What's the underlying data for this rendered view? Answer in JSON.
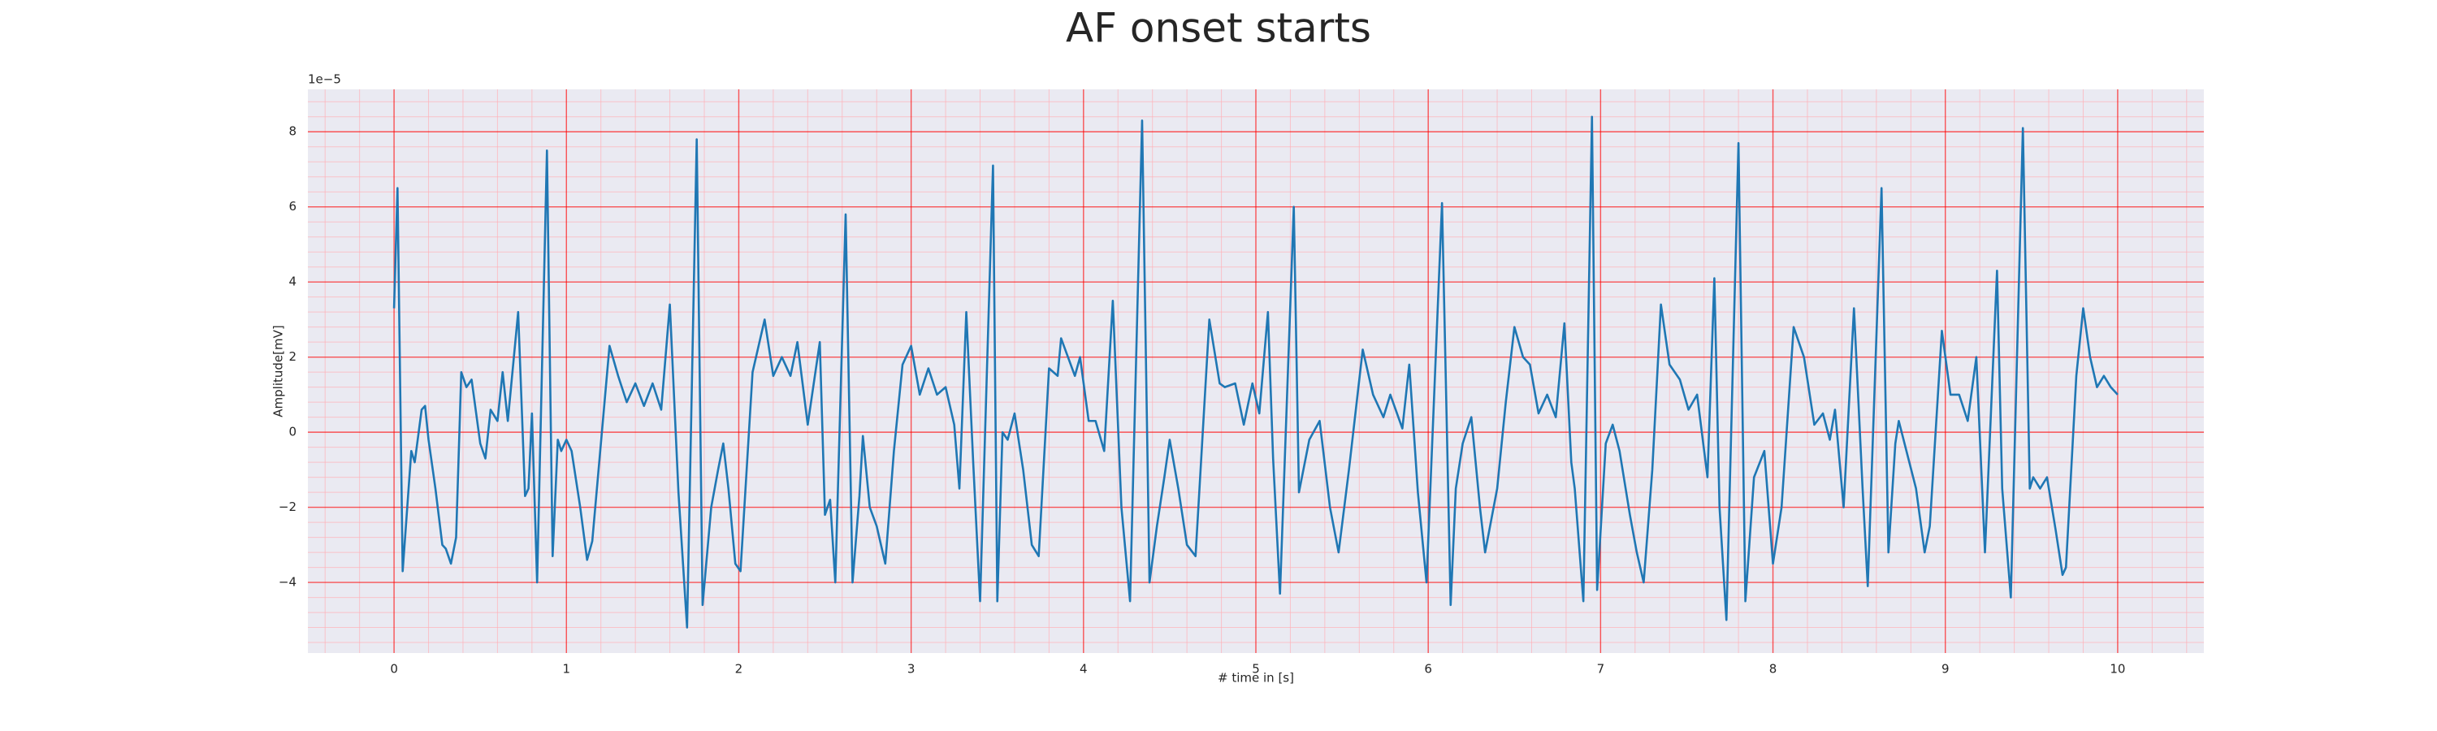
{
  "chart_data": {
    "type": "line",
    "title": "AF onset starts",
    "xlabel": "# time in [s]",
    "ylabel": "Amplitude[mV]",
    "offset_label": "1e−5",
    "xlim": [
      -0.5,
      10.5
    ],
    "ylim": [
      -5.88,
      9.13
    ],
    "xticks": [
      0,
      1,
      2,
      3,
      4,
      5,
      6,
      7,
      8,
      9,
      10
    ],
    "yticks": [
      {
        "value": -4,
        "label": "−4"
      },
      {
        "value": -2,
        "label": "−2"
      },
      0,
      2,
      4,
      6,
      8
    ],
    "x_minor_ticks": [
      -0.4,
      -0.2,
      0.2,
      0.4,
      0.6,
      0.8,
      1.2,
      1.4,
      1.6,
      1.8,
      2.2,
      2.4,
      2.6,
      2.8,
      3.2,
      3.4,
      3.6,
      3.8,
      4.2,
      4.4,
      4.6,
      4.8,
      5.2,
      5.4,
      5.6,
      5.8,
      6.2,
      6.4,
      6.6,
      6.8,
      7.2,
      7.4,
      7.6,
      7.8,
      8.2,
      8.4,
      8.6,
      8.8,
      9.2,
      9.4,
      9.6,
      9.8,
      10.2,
      10.4
    ],
    "y_minor_ticks": [
      -5.6,
      -5.2,
      -4.8,
      -4.4,
      -3.6,
      -3.2,
      -2.8,
      -2.4,
      -1.6,
      -1.2,
      -0.8,
      -0.4,
      0.4,
      0.8,
      1.2,
      1.6,
      2.4,
      2.8,
      3.2,
      3.6,
      4.4,
      4.8,
      5.2,
      5.6,
      6.4,
      6.8,
      7.2,
      7.6,
      8.4,
      8.8
    ],
    "grid": true,
    "grid_color": "#ff0000",
    "minor_grid_color": "#ffb0b8",
    "background": "#eaeaf2",
    "series": [
      {
        "color": "#1f77b4",
        "x": [
          0,
          0.02,
          0.05,
          0.1,
          0.12,
          0.16,
          0.18,
          0.2,
          0.24,
          0.28,
          0.3,
          0.33,
          0.36,
          0.39,
          0.42,
          0.45,
          0.5,
          0.53,
          0.56,
          0.6,
          0.63,
          0.66,
          0.72,
          0.76,
          0.78,
          0.8,
          0.83,
          0.887,
          0.92,
          0.95,
          0.97,
          1.0,
          1.03,
          1.08,
          1.12,
          1.15,
          1.25,
          1.3,
          1.35,
          1.4,
          1.45,
          1.5,
          1.55,
          1.6,
          1.65,
          1.7,
          1.756,
          1.79,
          1.84,
          1.88,
          1.91,
          1.94,
          1.98,
          2.01,
          2.08,
          2.15,
          2.2,
          2.25,
          2.3,
          2.34,
          2.4,
          2.47,
          2.5,
          2.53,
          2.56,
          2.62,
          2.66,
          2.7,
          2.72,
          2.76,
          2.8,
          2.85,
          2.9,
          2.95,
          3.0,
          3.05,
          3.1,
          3.15,
          3.2,
          3.25,
          3.28,
          3.32,
          3.36,
          3.4,
          3.475,
          3.5,
          3.53,
          3.56,
          3.6,
          3.65,
          3.7,
          3.74,
          3.8,
          3.85,
          3.87,
          3.95,
          3.98,
          4.03,
          4.07,
          4.12,
          4.17,
          4.22,
          4.27,
          4.34,
          4.383,
          4.426,
          4.469,
          4.5,
          4.55,
          4.6,
          4.65,
          4.73,
          4.79,
          4.82,
          4.88,
          4.93,
          4.98,
          5.02,
          5.07,
          5.1,
          5.14,
          5.22,
          5.25,
          5.31,
          5.37,
          5.43,
          5.48,
          5.54,
          5.62,
          5.68,
          5.74,
          5.78,
          5.85,
          5.89,
          5.94,
          5.99,
          6.08,
          6.13,
          6.16,
          6.2,
          6.25,
          6.3,
          6.33,
          6.4,
          6.45,
          6.5,
          6.55,
          6.59,
          6.64,
          6.69,
          6.74,
          6.79,
          6.83,
          6.85,
          6.9,
          6.95,
          6.98,
          7.03,
          7.07,
          7.11,
          7.17,
          7.21,
          7.25,
          7.3,
          7.35,
          7.4,
          7.46,
          7.51,
          7.56,
          7.62,
          7.66,
          7.69,
          7.73,
          7.8,
          7.84,
          7.89,
          7.95,
          8.0,
          8.05,
          8.12,
          8.18,
          8.24,
          8.29,
          8.33,
          8.36,
          8.41,
          8.47,
          8.52,
          8.55,
          8.63,
          8.67,
          8.71,
          8.73,
          8.78,
          8.83,
          8.88,
          8.91,
          8.98,
          9.03,
          9.08,
          9.13,
          9.18,
          9.23,
          9.3,
          9.33,
          9.38,
          9.45,
          9.49,
          9.51,
          9.55,
          9.59,
          9.64,
          9.68,
          9.7,
          9.76,
          9.8,
          9.84,
          9.88,
          9.92,
          9.96,
          10.0
        ],
        "values": [
          3.3,
          6.5,
          -3.7,
          -0.5,
          -0.8,
          0.6,
          0.7,
          -0.2,
          -1.5,
          -3.0,
          -3.1,
          -3.5,
          -2.8,
          1.6,
          1.2,
          1.4,
          -0.3,
          -0.7,
          0.6,
          0.3,
          1.6,
          0.3,
          3.2,
          -1.7,
          -1.5,
          0.5,
          -4.0,
          7.5,
          -3.3,
          -0.2,
          -0.5,
          -0.2,
          -0.5,
          -2.0,
          -3.4,
          -2.9,
          2.3,
          1.5,
          0.8,
          1.3,
          0.7,
          1.3,
          0.6,
          3.4,
          -1.6,
          -5.2,
          7.8,
          -4.6,
          -2.0,
          -1.0,
          -0.3,
          -1.5,
          -3.5,
          -3.7,
          1.6,
          3.0,
          1.5,
          2.0,
          1.5,
          2.4,
          0.2,
          2.4,
          -2.2,
          -1.8,
          -4.0,
          5.8,
          -4.0,
          -1.7,
          -0.1,
          -2.0,
          -2.5,
          -3.5,
          -0.5,
          1.8,
          2.3,
          1.0,
          1.7,
          1.0,
          1.2,
          0.2,
          -1.5,
          3.2,
          -0.8,
          -4.5,
          7.1,
          -4.5,
          0.0,
          -0.2,
          0.5,
          -1.0,
          -3.0,
          -3.3,
          1.7,
          1.5,
          2.5,
          1.5,
          2.0,
          0.3,
          0.3,
          -0.5,
          3.5,
          -2.0,
          -4.5,
          8.3,
          -4.0,
          -2.5,
          -1.2,
          -0.2,
          -1.5,
          -3.0,
          -3.3,
          3.0,
          1.3,
          1.2,
          1.3,
          0.2,
          1.3,
          0.5,
          3.2,
          -0.7,
          -4.3,
          6.0,
          -1.6,
          -0.2,
          0.3,
          -2.0,
          -3.2,
          -1.0,
          2.2,
          1.0,
          0.4,
          1.0,
          0.1,
          1.8,
          -1.6,
          -4.0,
          6.1,
          -4.6,
          -1.5,
          -0.3,
          0.4,
          -2.0,
          -3.2,
          -1.5,
          0.8,
          2.8,
          2.0,
          1.8,
          0.5,
          1.0,
          0.4,
          2.9,
          -0.8,
          -1.5,
          -4.5,
          8.4,
          -4.2,
          -0.3,
          0.2,
          -0.5,
          -2.2,
          -3.2,
          -4.0,
          -1.0,
          3.4,
          1.8,
          1.4,
          0.6,
          1.0,
          -1.2,
          4.1,
          -2.0,
          -5.0,
          7.7,
          -4.5,
          -1.2,
          -0.5,
          -3.5,
          -2.0,
          2.8,
          2.0,
          0.2,
          0.5,
          -0.2,
          0.6,
          -2.0,
          3.3,
          -1.5,
          -4.1,
          6.5,
          -3.2,
          -0.3,
          0.3,
          -0.6,
          -1.5,
          -3.2,
          -2.5,
          2.7,
          1.0,
          1.0,
          0.3,
          2.0,
          -3.2,
          4.3,
          -1.5,
          -4.4,
          8.1,
          -1.5,
          -1.2,
          -1.5,
          -1.2,
          -2.6,
          -3.8,
          -3.6,
          1.5,
          3.3,
          2.0,
          1.2,
          1.5,
          1.2,
          1.0
        ]
      }
    ]
  }
}
